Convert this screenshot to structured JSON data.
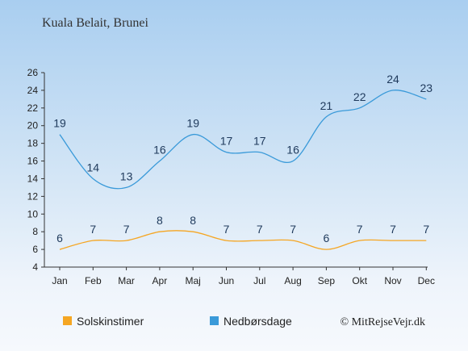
{
  "title": "Kuala Belait, Brunei",
  "copyright": "© MitRejseVejr.dk",
  "colors": {
    "sun": "#f5a623",
    "rain": "#3a9ad9",
    "axis": "#333333"
  },
  "chart_data": {
    "type": "line",
    "title": "Kuala Belait, Brunei",
    "categories": [
      "Jan",
      "Feb",
      "Mar",
      "Apr",
      "Maj",
      "Jun",
      "Jul",
      "Aug",
      "Sep",
      "Okt",
      "Nov",
      "Dec"
    ],
    "series": [
      {
        "name": "Solskinstimer",
        "values": [
          6,
          7,
          7,
          8,
          8,
          7,
          7,
          7,
          6,
          7,
          7,
          7
        ]
      },
      {
        "name": "Nedbørsdage",
        "values": [
          19,
          14,
          13,
          16,
          19,
          17,
          17,
          16,
          21,
          22,
          24,
          23
        ]
      }
    ],
    "ylim": [
      4,
      26
    ],
    "yticks": [
      4,
      6,
      8,
      10,
      12,
      14,
      16,
      18,
      20,
      22,
      24,
      26
    ],
    "legend": "bottom",
    "grid": false
  }
}
